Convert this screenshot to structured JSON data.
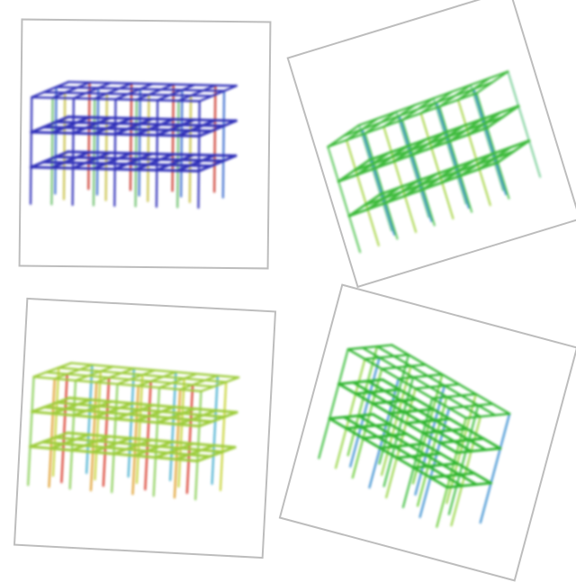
{
  "collage": {
    "panels": [
      {
        "id": "frame-plot-1",
        "scheme": "blue",
        "beam_color": "#2f2fb8",
        "column_colors": [
          "#2f2fb8",
          "#3f6fcf",
          "#6fc16f",
          "#c9c24a",
          "#cc3a2e"
        ]
      },
      {
        "id": "frame-plot-2",
        "scheme": "green",
        "beam_color": "#3cba3a",
        "column_colors": [
          "#5bc85b",
          "#7ccf9a",
          "#a9d64a",
          "#3a8fd0"
        ]
      },
      {
        "id": "frame-plot-3",
        "scheme": "heat",
        "beam_color": "#9ccc3a",
        "column_colors": [
          "#8ccf5a",
          "#c8d43a",
          "#e0a030",
          "#d83a2a",
          "#4ab0d0"
        ]
      },
      {
        "id": "frame-plot-4",
        "scheme": "green",
        "beam_color": "#2fb52f",
        "column_colors": [
          "#3fbf3f",
          "#6fcf3f",
          "#9ad64a",
          "#3a8fd0"
        ]
      }
    ]
  }
}
